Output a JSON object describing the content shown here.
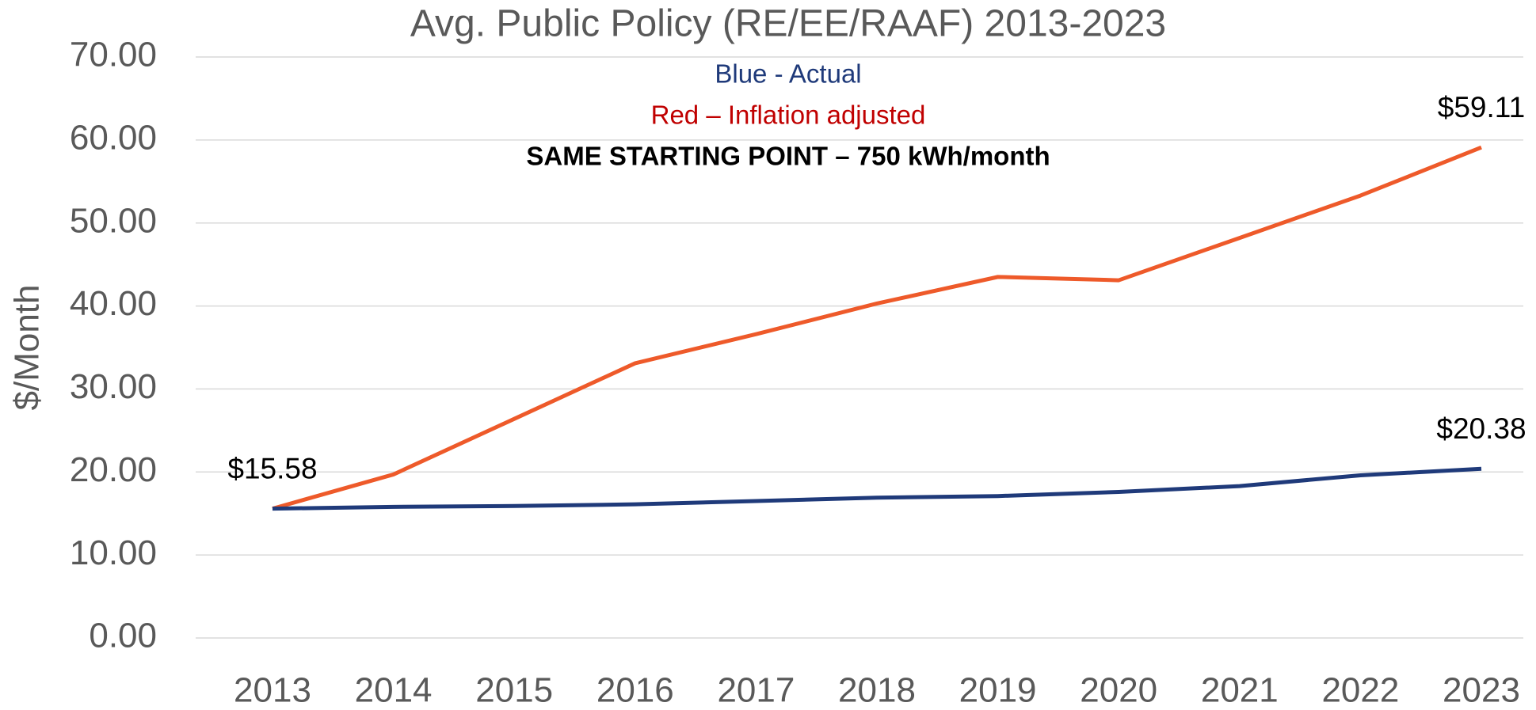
{
  "chart_data": {
    "type": "line",
    "title": "Avg. Public Policy (RE/EE/RAAF) 2013-2023",
    "annotations": [
      {
        "text": "Blue - Actual",
        "color": "#1f3a7a"
      },
      {
        "text": "Red – Inflation adjusted",
        "color": "#c00000"
      },
      {
        "text": "SAME STARTING POINT – 750 kWh/month",
        "color": "#000000"
      }
    ],
    "y_label": "$/Month",
    "categories": [
      "2013",
      "2014",
      "2015",
      "2016",
      "2017",
      "2018",
      "2019",
      "2020",
      "2021",
      "2022",
      "2023"
    ],
    "series": [
      {
        "name": "Inflation adjusted",
        "color": "#ee5a2a",
        "values": [
          15.58,
          19.7,
          26.4,
          33.1,
          36.6,
          40.3,
          43.5,
          43.1,
          48.2,
          53.3,
          59.11
        ],
        "value_labels": [
          "$15.58",
          null,
          null,
          null,
          null,
          null,
          null,
          null,
          null,
          null,
          "$59.11"
        ]
      },
      {
        "name": "Actual",
        "color": "#1f3a7a",
        "values": [
          15.58,
          15.8,
          15.9,
          16.1,
          16.5,
          16.9,
          17.1,
          17.6,
          18.3,
          19.6,
          20.38
        ],
        "value_labels": [
          null,
          null,
          null,
          null,
          null,
          null,
          null,
          null,
          null,
          null,
          "$20.38"
        ]
      }
    ],
    "ylim": [
      0,
      70
    ],
    "yticks": [
      {
        "value": 0,
        "label": "0.00"
      },
      {
        "value": 10,
        "label": "10.00"
      },
      {
        "value": 20,
        "label": "20.00"
      },
      {
        "value": 30,
        "label": "30.00"
      },
      {
        "value": 40,
        "label": "40.00"
      },
      {
        "value": 50,
        "label": "50.00"
      },
      {
        "value": 60,
        "label": "60.00"
      },
      {
        "value": 70,
        "label": "70.00"
      }
    ],
    "grid": true
  }
}
